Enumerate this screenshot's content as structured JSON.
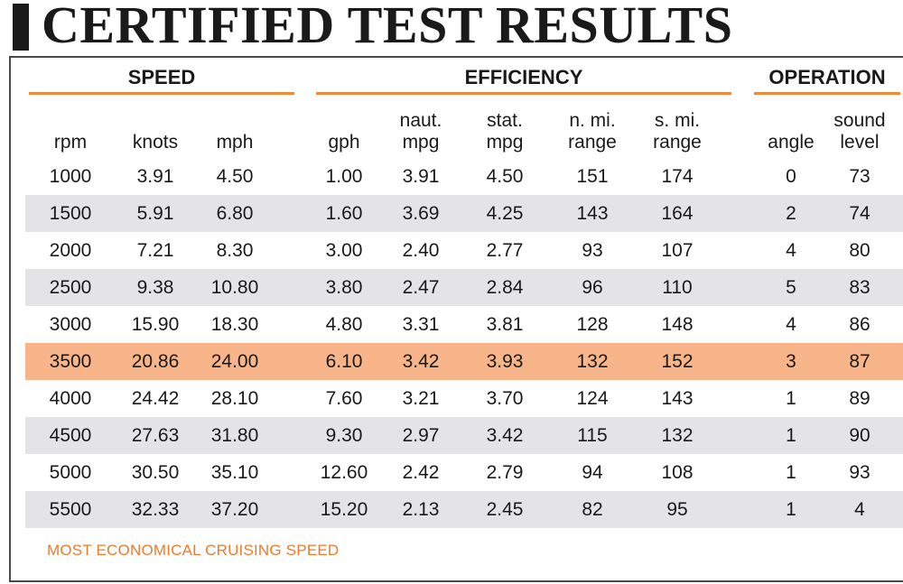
{
  "title": "CERTIFIED TEST RESULTS",
  "groups": {
    "speed": "SPEED",
    "efficiency": "EFFICIENCY",
    "operation": "OPERATION"
  },
  "columns": {
    "rpm": "rpm",
    "knots": "knots",
    "mph": "mph",
    "gph": "gph",
    "naut_mpg": "naut.\nmpg",
    "stat_mpg": "stat.\nmpg",
    "nmi_range": "n. mi.\nrange",
    "smi_range": "s. mi.\nrange",
    "angle": "angle",
    "sound_level": "sound\nlevel"
  },
  "rows": [
    {
      "rpm": "1000",
      "knots": "3.91",
      "mph": "4.50",
      "gph": "1.00",
      "naut_mpg": "3.91",
      "stat_mpg": "4.50",
      "nmi_range": "151",
      "smi_range": "174",
      "angle": "0",
      "sound_level": "73"
    },
    {
      "rpm": "1500",
      "knots": "5.91",
      "mph": "6.80",
      "gph": "1.60",
      "naut_mpg": "3.69",
      "stat_mpg": "4.25",
      "nmi_range": "143",
      "smi_range": "164",
      "angle": "2",
      "sound_level": "74"
    },
    {
      "rpm": "2000",
      "knots": "7.21",
      "mph": "8.30",
      "gph": "3.00",
      "naut_mpg": "2.40",
      "stat_mpg": "2.77",
      "nmi_range": "93",
      "smi_range": "107",
      "angle": "4",
      "sound_level": "80"
    },
    {
      "rpm": "2500",
      "knots": "9.38",
      "mph": "10.80",
      "gph": "3.80",
      "naut_mpg": "2.47",
      "stat_mpg": "2.84",
      "nmi_range": "96",
      "smi_range": "110",
      "angle": "5",
      "sound_level": "83"
    },
    {
      "rpm": "3000",
      "knots": "15.90",
      "mph": "18.30",
      "gph": "4.80",
      "naut_mpg": "3.31",
      "stat_mpg": "3.81",
      "nmi_range": "128",
      "smi_range": "148",
      "angle": "4",
      "sound_level": "86"
    },
    {
      "rpm": "3500",
      "knots": "20.86",
      "mph": "24.00",
      "gph": "6.10",
      "naut_mpg": "3.42",
      "stat_mpg": "3.93",
      "nmi_range": "132",
      "smi_range": "152",
      "angle": "3",
      "sound_level": "87",
      "highlight": true
    },
    {
      "rpm": "4000",
      "knots": "24.42",
      "mph": "28.10",
      "gph": "7.60",
      "naut_mpg": "3.21",
      "stat_mpg": "3.70",
      "nmi_range": "124",
      "smi_range": "143",
      "angle": "1",
      "sound_level": "89"
    },
    {
      "rpm": "4500",
      "knots": "27.63",
      "mph": "31.80",
      "gph": "9.30",
      "naut_mpg": "2.97",
      "stat_mpg": "3.42",
      "nmi_range": "115",
      "smi_range": "132",
      "angle": "1",
      "sound_level": "90"
    },
    {
      "rpm": "5000",
      "knots": "30.50",
      "mph": "35.10",
      "gph": "12.60",
      "naut_mpg": "2.42",
      "stat_mpg": "2.79",
      "nmi_range": "94",
      "smi_range": "108",
      "angle": "1",
      "sound_level": "93"
    },
    {
      "rpm": "5500",
      "knots": "32.33",
      "mph": "37.20",
      "gph": "15.20",
      "naut_mpg": "2.13",
      "stat_mpg": "2.45",
      "nmi_range": "82",
      "smi_range": "95",
      "angle": "1",
      "sound_level": "4"
    }
  ],
  "footnote": "MOST ECONOMICAL CRUISING SPEED",
  "colors": {
    "accent": "#ef8a3a",
    "highlight_row": "#f7b589",
    "alt_row": "#e4e4e6",
    "text": "#1a1a1a"
  }
}
